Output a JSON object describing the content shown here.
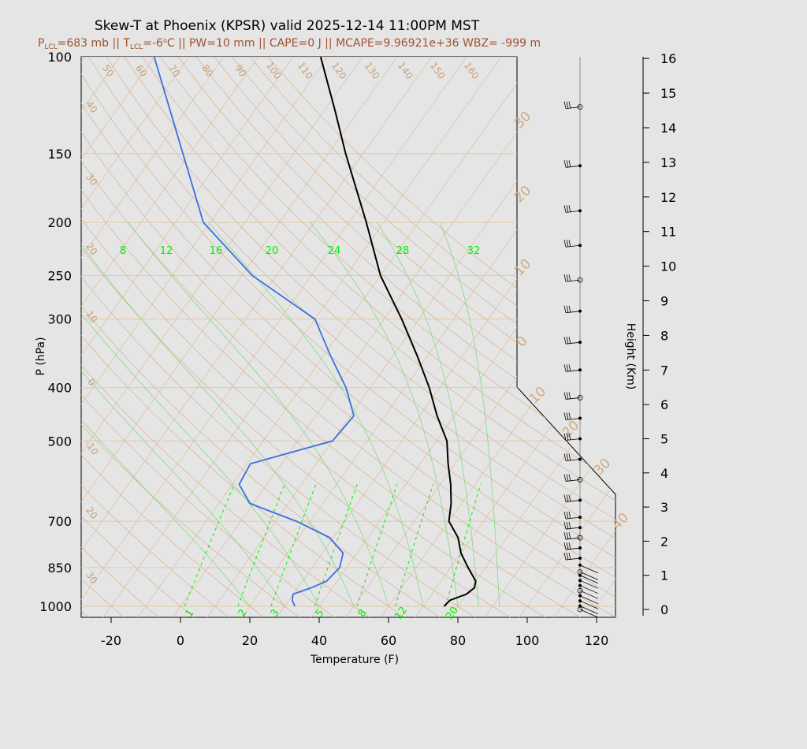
{
  "title": "Skew-T at Phoenix (KPSR) valid 2025-12-14 11:00PM MST",
  "subtitle": {
    "p_lcl_prefix": "P",
    "p_lcl_sub": "LCL",
    "p_lcl_value": "=683 mb || T",
    "t_lcl_sub": "LCL",
    "t_lcl_value": "=-6",
    "t_lcl_unit": "C || PW=10 mm || CAPE=0 J || MCAPE=9.96921e+36 WBZ= -999 m"
  },
  "colors": {
    "temperature": "#000000",
    "dewpoint": "#3b6fe0",
    "mixing_ratio": "#00ee00",
    "adiabat": "#d7b896",
    "isobar": "#e4c9a8",
    "barb": "#000000"
  },
  "chart_data": {
    "type": "line",
    "xlabel": "Temperature (F)",
    "ylabel": "P (hPa)",
    "y2label": "Height (Km)",
    "xlim": [
      -20,
      120
    ],
    "x_ticks": [
      "-20",
      "0",
      "20",
      "40",
      "60",
      "80",
      "100",
      "120"
    ],
    "p_ticks": [
      "100",
      "150",
      "200",
      "250",
      "300",
      "400",
      "500",
      "700",
      "850",
      "1000"
    ],
    "height_ticks": [
      "0",
      "1",
      "2",
      "3",
      "4",
      "5",
      "6",
      "7",
      "8",
      "9",
      "10",
      "11",
      "12",
      "13",
      "14",
      "15",
      "16"
    ],
    "mixing_ratio_top_labels": [
      "8",
      "12",
      "16",
      "20",
      "24",
      "28",
      "32"
    ],
    "mixing_ratio_bottom_labels": [
      "1",
      "2",
      "3",
      "5",
      "8",
      "12",
      "20"
    ],
    "dry_adiabat_labels": [
      "50",
      "60",
      "70",
      "80",
      "90",
      "100",
      "110",
      "120",
      "130",
      "140",
      "150",
      "160"
    ],
    "left_isotherm_labels": [
      "40",
      "30",
      "20",
      "10",
      "0",
      "-10",
      "20",
      "30"
    ],
    "right_isotherm_labels": [
      "30",
      "20",
      "10",
      "0",
      "10",
      "20",
      "30",
      "40"
    ],
    "series": [
      {
        "name": "temperature",
        "p": [
          1000,
          975,
          950,
          925,
          900,
          850,
          800,
          750,
          700,
          650,
          600,
          550,
          500,
          450,
          400,
          350,
          300,
          250,
          200,
          150,
          125,
          100
        ],
        "temp_f": [
          76,
          76.5,
          80,
          81,
          80,
          75,
          70,
          66,
          60,
          57,
          53,
          48,
          43,
          35,
          27,
          17,
          5,
          -10,
          -25,
          -45,
          -57,
          -72
        ]
      },
      {
        "name": "dewpoint",
        "p": [
          1000,
          975,
          950,
          925,
          900,
          850,
          800,
          750,
          700,
          650,
          600,
          550,
          500,
          450,
          400,
          350,
          300,
          250,
          200,
          100
        ],
        "temp_f": [
          33,
          31,
          30,
          34,
          37,
          38,
          36,
          29,
          16,
          -1,
          -8,
          -9,
          10,
          11,
          3,
          -8,
          -20,
          -47,
          -72,
          -120
        ]
      }
    ],
    "wind_barbs_height_km": [
      0.0,
      0.1,
      0.25,
      0.4,
      0.55,
      0.7,
      0.85,
      1.0,
      1.1,
      1.3,
      1.5,
      1.8,
      2.1,
      2.4,
      2.7,
      3.2,
      3.8,
      4.4,
      5.0,
      5.6,
      6.2,
      7.0,
      7.8,
      8.7,
      9.6,
      10.6,
      11.6,
      12.9,
      14.6
    ]
  }
}
